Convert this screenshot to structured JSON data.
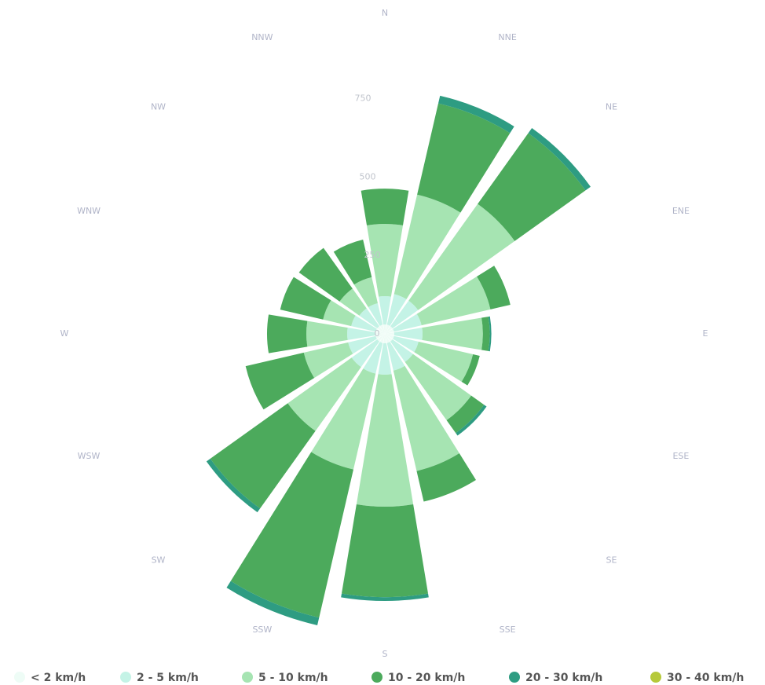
{
  "chart_data": {
    "type": "windrose",
    "categories": [
      "N",
      "NNE",
      "NE",
      "ENE",
      "E",
      "ESE",
      "SE",
      "SSE",
      "S",
      "SSW",
      "SW",
      "WSW",
      "W",
      "WNW",
      "NW",
      "NNW"
    ],
    "series": [
      {
        "name": "< 2 km/h",
        "color": "#eefcf6",
        "values": [
          30,
          30,
          30,
          30,
          30,
          30,
          30,
          30,
          30,
          30,
          30,
          30,
          30,
          30,
          30,
          30
        ]
      },
      {
        "name": "2 - 5 km/h",
        "color": "#c4f3e6",
        "values": [
          90,
          100,
          100,
          90,
          90,
          80,
          80,
          90,
          100,
          100,
          100,
          90,
          90,
          80,
          70,
          70
        ]
      },
      {
        "name": "5 - 10 km/h",
        "color": "#a6e4b2",
        "values": [
          230,
          325,
          378,
          225,
          192,
          178,
          228,
          328,
          420,
          313,
          250,
          145,
          130,
          92,
          77,
          85
        ]
      },
      {
        "name": "10 - 20 km/h",
        "color": "#4caa5c",
        "values": [
          112,
          298,
          277,
          65,
          22,
          22,
          50,
          100,
          288,
          484,
          303,
          190,
          125,
          140,
          159,
          123
        ]
      },
      {
        "name": "20 - 30 km/h",
        "color": "#2e9c82",
        "values": [
          0,
          25,
          20,
          0,
          5,
          0,
          10,
          0,
          12,
          25,
          15,
          0,
          0,
          0,
          0,
          0
        ]
      },
      {
        "name": "30 - 40 km/h",
        "color": "#b6c93a",
        "values": [
          0,
          0,
          0,
          0,
          0,
          0,
          0,
          0,
          0,
          0,
          0,
          0,
          0,
          0,
          0,
          0
        ]
      }
    ],
    "rlim": [
      0,
      1000
    ],
    "rticks": [
      0,
      250,
      500,
      750
    ]
  }
}
